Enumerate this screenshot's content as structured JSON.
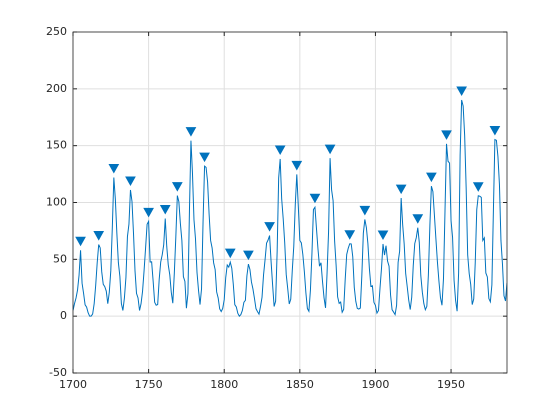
{
  "chart_data": {
    "type": "line",
    "grid": true,
    "xlim": [
      1700,
      1987
    ],
    "xticks": [
      1700,
      1750,
      1800,
      1850,
      1900,
      1950
    ],
    "ylim": [
      -50,
      250
    ],
    "yticks": [
      -50,
      0,
      50,
      100,
      150,
      200,
      250
    ],
    "series": [
      {
        "color": "#0072bd",
        "x": [
          1700,
          1701,
          1702,
          1703,
          1704,
          1705,
          1706,
          1707,
          1708,
          1709,
          1710,
          1711,
          1712,
          1713,
          1714,
          1715,
          1716,
          1717,
          1718,
          1719,
          1720,
          1721,
          1722,
          1723,
          1724,
          1725,
          1726,
          1727,
          1728,
          1729,
          1730,
          1731,
          1732,
          1733,
          1734,
          1735,
          1736,
          1737,
          1738,
          1739,
          1740,
          1741,
          1742,
          1743,
          1744,
          1745,
          1746,
          1747,
          1748,
          1749,
          1750,
          1751,
          1752,
          1753,
          1754,
          1755,
          1756,
          1757,
          1758,
          1759,
          1760,
          1761,
          1762,
          1763,
          1764,
          1765,
          1766,
          1767,
          1768,
          1769,
          1770,
          1771,
          1772,
          1773,
          1774,
          1775,
          1776,
          1777,
          1778,
          1779,
          1780,
          1781,
          1782,
          1783,
          1784,
          1785,
          1786,
          1787,
          1788,
          1789,
          1790,
          1791,
          1792,
          1793,
          1794,
          1795,
          1796,
          1797,
          1798,
          1799,
          1800,
          1801,
          1802,
          1803,
          1804,
          1805,
          1806,
          1807,
          1808,
          1809,
          1810,
          1811,
          1812,
          1813,
          1814,
          1815,
          1816,
          1817,
          1818,
          1819,
          1820,
          1821,
          1822,
          1823,
          1824,
          1825,
          1826,
          1827,
          1828,
          1829,
          1830,
          1831,
          1832,
          1833,
          1834,
          1835,
          1836,
          1837,
          1838,
          1839,
          1840,
          1841,
          1842,
          1843,
          1844,
          1845,
          1846,
          1847,
          1848,
          1849,
          1850,
          1851,
          1852,
          1853,
          1854,
          1855,
          1856,
          1857,
          1858,
          1859,
          1860,
          1861,
          1862,
          1863,
          1864,
          1865,
          1866,
          1867,
          1868,
          1869,
          1870,
          1871,
          1872,
          1873,
          1874,
          1875,
          1876,
          1877,
          1878,
          1879,
          1880,
          1881,
          1882,
          1883,
          1884,
          1885,
          1886,
          1887,
          1888,
          1889,
          1890,
          1891,
          1892,
          1893,
          1894,
          1895,
          1896,
          1897,
          1898,
          1899,
          1900,
          1901,
          1902,
          1903,
          1904,
          1905,
          1906,
          1907,
          1908,
          1909,
          1910,
          1911,
          1912,
          1913,
          1914,
          1915,
          1916,
          1917,
          1918,
          1919,
          1920,
          1921,
          1922,
          1923,
          1924,
          1925,
          1926,
          1927,
          1928,
          1929,
          1930,
          1931,
          1932,
          1933,
          1934,
          1935,
          1936,
          1937,
          1938,
          1939,
          1940,
          1941,
          1942,
          1943,
          1944,
          1945,
          1946,
          1947,
          1948,
          1949,
          1950,
          1951,
          1952,
          1953,
          1954,
          1955,
          1956,
          1957,
          1958,
          1959,
          1960,
          1961,
          1962,
          1963,
          1964,
          1965,
          1966,
          1967,
          1968,
          1969,
          1970,
          1971,
          1972,
          1973,
          1974,
          1975,
          1976,
          1977,
          1978,
          1979,
          1980,
          1981,
          1982,
          1983,
          1984,
          1985,
          1986,
          1987
        ],
        "values": [
          5,
          11,
          16,
          23,
          36,
          58,
          29,
          20,
          10,
          8,
          3,
          0,
          0,
          2,
          11,
          27,
          47,
          63,
          60,
          39,
          28,
          26,
          22,
          11,
          21,
          40,
          78,
          122,
          103,
          73,
          47,
          35,
          11,
          5,
          16,
          34,
          70,
          81,
          111,
          101,
          73,
          40,
          20,
          16,
          5,
          11,
          22,
          40,
          60,
          80.9,
          83.4,
          47.7,
          47.8,
          30.7,
          12.2,
          9.6,
          10.2,
          32.4,
          47.6,
          54,
          62.9,
          85.9,
          61.2,
          45.1,
          36.4,
          20.9,
          11.4,
          37.8,
          69.8,
          106.1,
          100.8,
          81.6,
          66.5,
          34.8,
          30.6,
          7,
          19.8,
          92.5,
          154.4,
          125.9,
          84.8,
          68.1,
          38.5,
          22.8,
          10.2,
          24.1,
          82.9,
          132,
          130.9,
          118.1,
          89.9,
          66.6,
          60,
          46.9,
          41,
          21.3,
          16,
          6.4,
          4.1,
          6.8,
          14.5,
          34,
          45,
          43.1,
          47.5,
          42.2,
          28.1,
          10.1,
          8.1,
          2.5,
          0,
          1.4,
          5,
          12.2,
          13.9,
          35.4,
          45.8,
          41.1,
          30.1,
          23.9,
          15.6,
          6.6,
          4,
          1.8,
          8.5,
          16.6,
          36.3,
          49.6,
          64.2,
          67,
          70.9,
          47.8,
          27.5,
          8.5,
          13.2,
          56.9,
          121.5,
          138.3,
          103.2,
          85.7,
          64.6,
          36.7,
          24.2,
          10.7,
          15,
          40.1,
          61.5,
          98.5,
          124.7,
          96.3,
          66.6,
          64.5,
          54.1,
          39,
          20.6,
          6.7,
          4.3,
          22.7,
          54.8,
          93.8,
          95.8,
          77.2,
          59.1,
          44,
          47,
          30.5,
          16.3,
          7.3,
          37.6,
          74,
          139,
          111.2,
          101.6,
          66.2,
          44.7,
          17,
          11.3,
          12.4,
          3.4,
          6,
          32.3,
          54.3,
          59.7,
          63.7,
          63.5,
          52.2,
          25.4,
          13.1,
          6.8,
          6.3,
          7.1,
          35.6,
          73,
          85.1,
          78,
          64,
          41.8,
          26.2,
          26.7,
          12.1,
          9.5,
          2.7,
          5,
          24.4,
          42,
          63.5,
          53.8,
          62,
          48.5,
          43.9,
          18.6,
          5.7,
          3.6,
          1.4,
          9.6,
          47.4,
          57.1,
          103.9,
          80.6,
          63.6,
          37.6,
          26.1,
          14.2,
          5.8,
          16.7,
          44.3,
          63.9,
          69,
          77.8,
          64.9,
          35.7,
          21.2,
          11.1,
          5.7,
          8.7,
          36.1,
          79.7,
          114.4,
          109.6,
          88.8,
          67.8,
          47.5,
          30.6,
          16.3,
          9.6,
          33.2,
          92.6,
          151.6,
          136.3,
          134.7,
          83.9,
          69.4,
          31.5,
          13.9,
          4.4,
          38,
          141.7,
          190.2,
          184.8,
          159,
          112.3,
          53.9,
          37.5,
          27.9,
          10.2,
          15.1,
          47,
          93.8,
          105.9,
          105.5,
          104.5,
          66.6,
          68.9,
          38,
          34.5,
          15.5,
          12.6,
          27.5,
          92.5,
          155.4,
          154.7,
          140.5,
          115.9,
          66.6,
          45.9,
          17.9,
          13.4,
          29.3
        ]
      },
      {
        "color": "#0072bd",
        "marker": "triangle-down",
        "x": [
          1705,
          1717,
          1727,
          1738,
          1750,
          1761,
          1769,
          1778,
          1787,
          1804,
          1816,
          1830,
          1837,
          1848,
          1860,
          1870,
          1883,
          1893,
          1905,
          1917,
          1928,
          1937,
          1947,
          1957,
          1968,
          1979
        ],
        "values": [
          58,
          63,
          122,
          111,
          83.4,
          85.9,
          106.1,
          154.4,
          132,
          47.5,
          45.8,
          70.9,
          138.3,
          124.7,
          95.8,
          139,
          63.7,
          85.1,
          63.5,
          103.9,
          77.8,
          114.4,
          151.6,
          190.2,
          105.9,
          155.4
        ]
      }
    ]
  }
}
